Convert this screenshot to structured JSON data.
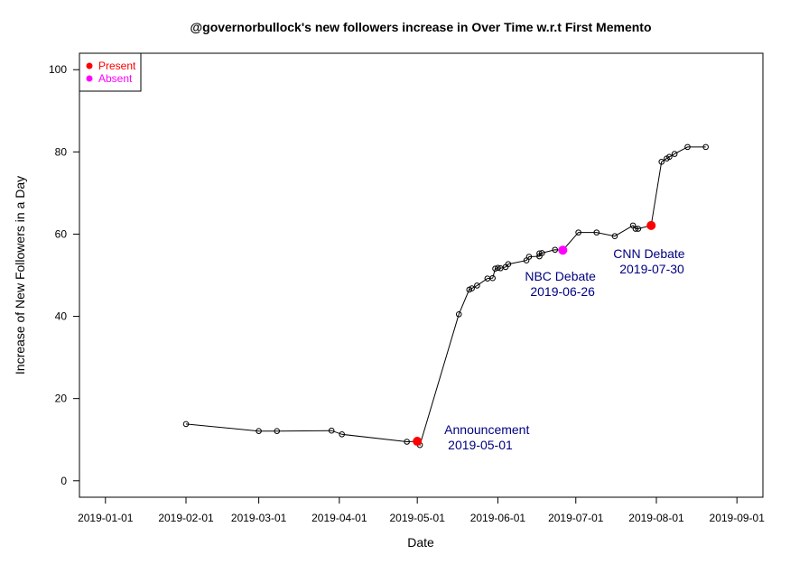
{
  "chart_data": {
    "type": "line",
    "title": "@governorbullock's new followers increase in Over Time w.r.t First Memento",
    "xlabel": "Date",
    "ylabel": "Increase of New Followers in a Day",
    "xlim": [
      "2018-12-22",
      "2019-09-11"
    ],
    "ylim": [
      -4,
      104
    ],
    "x_ticks": [
      "2019-01-01",
      "2019-02-01",
      "2019-03-01",
      "2019-04-01",
      "2019-05-01",
      "2019-06-01",
      "2019-07-01",
      "2019-08-01",
      "2019-09-01"
    ],
    "y_ticks": [
      0,
      20,
      40,
      60,
      80,
      100
    ],
    "grid": false,
    "legend_position": "top-left",
    "series": [
      {
        "values": [
          {
            "x": "2019-02-01",
            "y": 13.8
          },
          {
            "x": "2019-03-01",
            "y": 12.1
          },
          {
            "x": "2019-03-08",
            "y": 12.1
          },
          {
            "x": "2019-03-29",
            "y": 12.2
          },
          {
            "x": "2019-04-02",
            "y": 11.3
          },
          {
            "x": "2019-04-27",
            "y": 9.5
          },
          {
            "x": "2019-05-01",
            "y": 9.6
          },
          {
            "x": "2019-05-02",
            "y": 8.7
          },
          {
            "x": "2019-05-17",
            "y": 40.5
          },
          {
            "x": "2019-05-21",
            "y": 46.5
          },
          {
            "x": "2019-05-22",
            "y": 46.8
          },
          {
            "x": "2019-05-24",
            "y": 47.5
          },
          {
            "x": "2019-05-28",
            "y": 49.2
          },
          {
            "x": "2019-05-30",
            "y": 49.3
          },
          {
            "x": "2019-05-31",
            "y": 51.6
          },
          {
            "x": "2019-06-01",
            "y": 51.8
          },
          {
            "x": "2019-06-02",
            "y": 51.7
          },
          {
            "x": "2019-06-04",
            "y": 52.0
          },
          {
            "x": "2019-06-05",
            "y": 52.7
          },
          {
            "x": "2019-06-12",
            "y": 53.6
          },
          {
            "x": "2019-06-13",
            "y": 54.5
          },
          {
            "x": "2019-06-17",
            "y": 54.6
          },
          {
            "x": "2019-06-17",
            "y": 55.3
          },
          {
            "x": "2019-06-18",
            "y": 55.4
          },
          {
            "x": "2019-06-23",
            "y": 56.2
          },
          {
            "x": "2019-06-26",
            "y": 56.1
          },
          {
            "x": "2019-07-02",
            "y": 60.4
          },
          {
            "x": "2019-07-09",
            "y": 60.4
          },
          {
            "x": "2019-07-16",
            "y": 59.5
          },
          {
            "x": "2019-07-23",
            "y": 62.1
          },
          {
            "x": "2019-07-24",
            "y": 61.3
          },
          {
            "x": "2019-07-25",
            "y": 61.3
          },
          {
            "x": "2019-07-30",
            "y": 62.1
          },
          {
            "x": "2019-08-03",
            "y": 77.6
          },
          {
            "x": "2019-08-05",
            "y": 78.4
          },
          {
            "x": "2019-08-06",
            "y": 78.8
          },
          {
            "x": "2019-08-08",
            "y": 79.5
          },
          {
            "x": "2019-08-13",
            "y": 81.2
          },
          {
            "x": "2019-08-20",
            "y": 81.2
          }
        ]
      }
    ],
    "highlights": [
      {
        "x": "2019-05-01",
        "y": 9.6,
        "status": "Present"
      },
      {
        "x": "2019-06-26",
        "y": 56.1,
        "status": "Absent"
      },
      {
        "x": "2019-07-30",
        "y": 62.1,
        "status": "Present"
      }
    ],
    "legend": [
      {
        "label": "Present",
        "color": "#ff0000"
      },
      {
        "label": "Absent",
        "color": "#ff00ff"
      }
    ],
    "annotations": [
      {
        "line1": "Announcement",
        "line2": "2019-05-01"
      },
      {
        "line1": "NBC Debate",
        "line2": "2019-06-26"
      },
      {
        "line1": "CNN Debate",
        "line2": "2019-07-30"
      }
    ],
    "annotation_color": "#000080",
    "line_color": "#000000"
  }
}
